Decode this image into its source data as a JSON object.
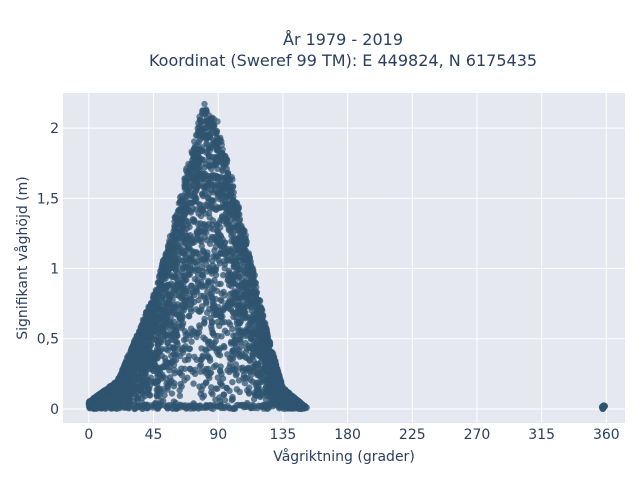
{
  "chart_data": {
    "type": "scatter",
    "title_line1": "År 1979 - 2019",
    "title_line2": "Koordinat (Sweref 99 TM): E 449824, N 6175435",
    "xlabel": "Vågriktning (grader)",
    "ylabel": "Signifikant våghöjd (m)",
    "xlim": [
      -18,
      373
    ],
    "ylim": [
      -0.1,
      2.25
    ],
    "x_ticks": [
      0,
      45,
      90,
      135,
      180,
      225,
      270,
      315,
      360
    ],
    "x_tick_labels": [
      "0",
      "45",
      "90",
      "135",
      "180",
      "225",
      "270",
      "315",
      "360"
    ],
    "y_ticks": [
      0,
      0.5,
      1,
      1.5,
      2
    ],
    "y_tick_labels": [
      "0",
      "0,5",
      "1",
      "1,5",
      "2"
    ],
    "grid": true,
    "marker_color": "#2f5470",
    "background_color": "#e5e8f0",
    "point_cloud": {
      "description_of_envelope": [
        {
          "x": 0,
          "y": 0.05
        },
        {
          "x": 20,
          "y": 0.2
        },
        {
          "x": 45,
          "y": 0.8
        },
        {
          "x": 60,
          "y": 1.35
        },
        {
          "x": 73,
          "y": 1.9
        },
        {
          "x": 80,
          "y": 2.16
        },
        {
          "x": 90,
          "y": 2.0
        },
        {
          "x": 100,
          "y": 1.6
        },
        {
          "x": 112,
          "y": 1.1
        },
        {
          "x": 125,
          "y": 0.5
        },
        {
          "x": 135,
          "y": 0.15
        },
        {
          "x": 150,
          "y": 0.02
        }
      ],
      "outlier_cluster": {
        "x": 358,
        "y_min": 0.0,
        "y_max": 0.03
      }
    }
  }
}
